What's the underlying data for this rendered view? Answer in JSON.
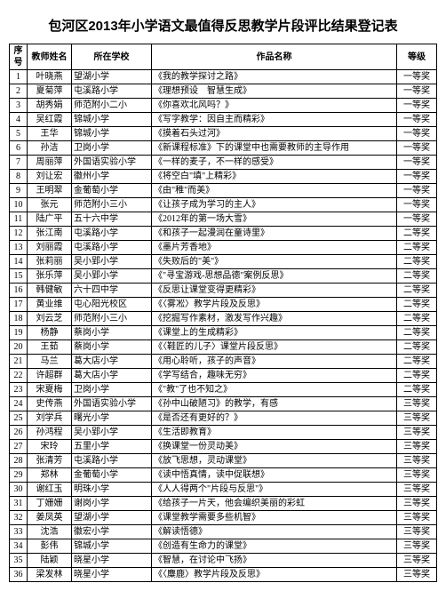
{
  "title": "包河区2013年小学语文最值得反思教学片段评比结果登记表",
  "columns": [
    "序号",
    "教师姓名",
    "所在学校",
    "作品名称",
    "等级"
  ],
  "rows": [
    [
      "1",
      "叶晓燕",
      "望湖小学",
      "《我的教学探讨之路》",
      "一等奖"
    ],
    [
      "2",
      "夏菊萍",
      "屯溪路小学",
      "《理想预设　智慧生成》",
      "一等奖"
    ],
    [
      "3",
      "胡秀娟",
      "师范附小二小",
      "《你喜欢北风吗？》",
      "一等奖"
    ],
    [
      "4",
      "吴红霞",
      "锦城小学",
      "《写字教学：因自主而精彩》",
      "一等奖"
    ],
    [
      "5",
      "王华",
      "锦城小学",
      "《摸着石头过河》",
      "一等奖"
    ],
    [
      "6",
      "孙洁",
      "卫岗小学",
      "《新课程标准》下的课堂中也需要教师的主导作用",
      "一等奖"
    ],
    [
      "7",
      "周丽萍",
      "外国语实验小学",
      "《一样的麦子，不一样的感受》",
      "一等奖"
    ],
    [
      "8",
      "刘让宏",
      "徽州小学",
      "《将空白\"填\"上精彩》",
      "一等奖"
    ],
    [
      "9",
      "王明翠",
      "金葡萄小学",
      "《由\"稚\"而美》",
      "一等奖"
    ],
    [
      "10",
      "张元",
      "师范附小三小",
      "《让孩子成为学习的主人》",
      "一等奖"
    ],
    [
      "11",
      "陆广平",
      "五十六中学",
      "《2012年的第一场大雪》",
      "一等奖"
    ],
    [
      "12",
      "张江南",
      "屯溪路小学",
      "《和孩子一起漫润在童诗里》",
      "二等奖"
    ],
    [
      "13",
      "刘丽霞",
      "屯溪路小学",
      "《墨片芳香地》",
      "二等奖"
    ],
    [
      "14",
      "张莉丽",
      "吴小郢小学",
      "《失败后的\"美\"》",
      "二等奖"
    ],
    [
      "15",
      "张乐萍",
      "吴小郢小学",
      "《\"寻宝游戏-思想品德\"案例反思》",
      "二等奖"
    ],
    [
      "16",
      "韩健敏",
      "六十四中学",
      "《反思让课堂变得更精彩》",
      "二等奖"
    ],
    [
      "17",
      "黄业维",
      "屯心阳光校区",
      "《〈雾凇〉教学片段及反思》",
      "二等奖"
    ],
    [
      "18",
      "刘云芝",
      "师范附小三小",
      "《挖掘写作素材，激发写作兴趣》",
      "二等奖"
    ],
    [
      "19",
      "杨静",
      "蔡岗小学",
      "《课堂上的生成精彩》",
      "二等奖"
    ],
    [
      "20",
      "王茹",
      "蔡岗小学",
      "《〈鞋匠的儿子〉课堂片段反思》",
      "二等奖"
    ],
    [
      "21",
      "马兰",
      "葛大店小学",
      "《用心聆听，孩子的声音》",
      "二等奖"
    ],
    [
      "22",
      "许超群",
      "葛大店小学",
      "《学写结合，趣味无穷》",
      "二等奖"
    ],
    [
      "23",
      "宋夏梅",
      "卫岗小学",
      "《\"教\"了也不知之》",
      "二等奖"
    ],
    [
      "24",
      "史传燕",
      "外国语实验小学",
      "《孙中山破陋习》的教学，有感",
      "三等奖"
    ],
    [
      "25",
      "刘学兵",
      "曙光小学",
      "《是否还有更好的？》",
      "三等奖"
    ],
    [
      "26",
      "孙鸿程",
      "吴小郢小学",
      "《生活即教育》",
      "三等奖"
    ],
    [
      "27",
      "宋玲",
      "五里小学",
      "《换课堂一份灵动美》",
      "三等奖"
    ],
    [
      "28",
      "张清芳",
      "屯溪路小学",
      "《放飞思想，灵动课堂》",
      "三等奖"
    ],
    [
      "29",
      "郑林",
      "金葡萄小学",
      "《读中悟真情，读中促联想》",
      "三等奖"
    ],
    [
      "30",
      "谢红玉",
      "明珠小学",
      "《人人得两个\"片段与反思\"》",
      "三等奖"
    ],
    [
      "31",
      "丁姗姗",
      "谢岗小学",
      "《给孩子一片天，他会编织美丽的彩虹",
      "三等奖"
    ],
    [
      "32",
      "姜凤英",
      "望湖小学",
      "《课堂教学需要多些机智》",
      "三等奖"
    ],
    [
      "33",
      "沈浩",
      "徽宏小学",
      "《解读悟德》",
      "三等奖"
    ],
    [
      "34",
      "彭伟",
      "锦城小学",
      "《创造有生命力的课堂》",
      "三等奖"
    ],
    [
      "35",
      "陆颖",
      "晓星小学",
      "《智慧，在讨论中飞扬》",
      "三等奖"
    ],
    [
      "36",
      "梁发林",
      "晓星小学",
      "《〈麋鹿〉教学片段及反思》",
      "三等奖"
    ]
  ]
}
